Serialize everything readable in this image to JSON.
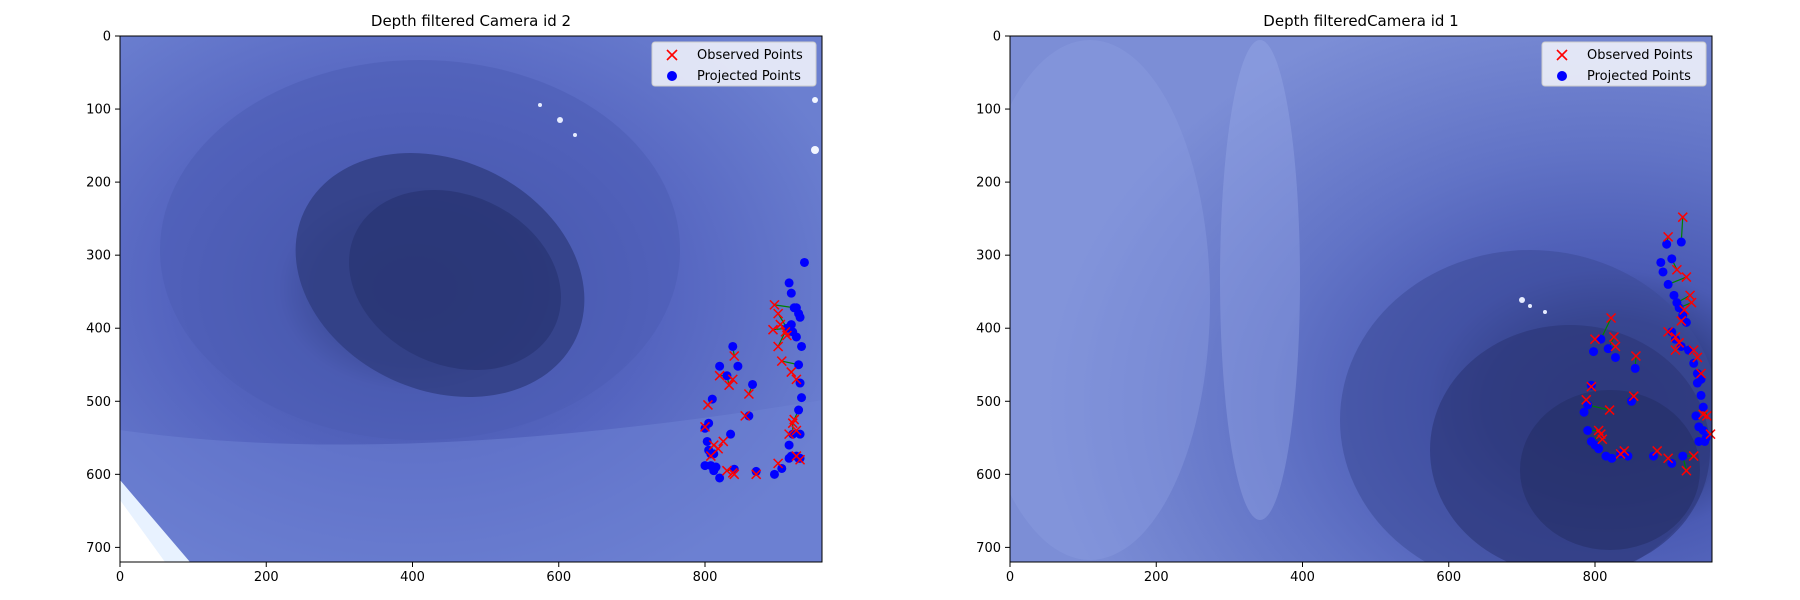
{
  "chart_data": [
    {
      "type": "scatter",
      "title": "Depth filtered Camera id 2",
      "background": "endoscopic colon image (blue-tinted), lumen center-left",
      "xlim": [
        0,
        960
      ],
      "ylim": [
        720,
        0
      ],
      "xticks": [
        0,
        200,
        400,
        600,
        800
      ],
      "yticks": [
        0,
        100,
        200,
        300,
        400,
        500,
        600,
        700
      ],
      "legend": {
        "position": "top-right",
        "entries": [
          "Observed Points",
          "Projected Points"
        ]
      },
      "colors": {
        "observed": "#ff0000",
        "projected": "#0000ff",
        "lines": "#008000"
      },
      "series": [
        {
          "name": "Observed Points",
          "marker": "x",
          "x": [
            895,
            900,
            903,
            910,
            893,
            905,
            912,
            900,
            918,
            925,
            922,
            840,
            838,
            833,
            820,
            825,
            855,
            860,
            800,
            804,
            808,
            812,
            818,
            830,
            840,
            838,
            870,
            900,
            915,
            920,
            925,
            930,
            925
          ],
          "y": [
            368,
            380,
            395,
            405,
            402,
            445,
            410,
            425,
            460,
            470,
            525,
            438,
            470,
            478,
            465,
            555,
            520,
            490,
            535,
            505,
            575,
            560,
            565,
            595,
            600,
            598,
            600,
            585,
            545,
            530,
            540,
            580,
            575
          ]
        },
        {
          "name": "Projected Points",
          "marker": "o",
          "x": [
            936,
            915,
            918,
            922,
            925,
            928,
            930,
            918,
            912,
            920,
            925,
            932,
            928,
            930,
            932,
            928,
            930,
            920,
            915,
            918,
            925,
            928,
            838,
            820,
            830,
            845,
            865,
            860,
            810,
            805,
            800,
            803,
            805,
            808,
            812,
            808,
            815,
            835,
            840,
            800,
            812,
            820,
            870,
            895,
            905,
            915,
            930
          ],
          "y": [
            310,
            338,
            352,
            372,
            372,
            380,
            385,
            395,
            400,
            405,
            412,
            425,
            450,
            475,
            495,
            512,
            545,
            545,
            560,
            575,
            575,
            578,
            425,
            452,
            465,
            452,
            477,
            520,
            497,
            530,
            537,
            555,
            567,
            572,
            572,
            588,
            590,
            545,
            593,
            588,
            595,
            605,
            596,
            600,
            592,
            578,
            578
          ]
        }
      ]
    },
    {
      "type": "scatter",
      "title": "Depth filteredCamera id 1",
      "background": "endoscopic colon image (blue-tinted), lumen lower-right",
      "xlim": [
        0,
        960
      ],
      "ylim": [
        720,
        0
      ],
      "xticks": [
        0,
        200,
        400,
        600,
        800
      ],
      "yticks": [
        0,
        100,
        200,
        300,
        400,
        500,
        600,
        700
      ],
      "legend": {
        "position": "top-right",
        "entries": [
          "Observed Points",
          "Projected Points"
        ]
      },
      "colors": {
        "observed": "#ff0000",
        "projected": "#0000ff",
        "lines": "#008000"
      },
      "series": [
        {
          "name": "Observed Points",
          "marker": "x",
          "x": [
            920,
            900,
            912,
            925,
            930,
            932,
            922,
            918,
            935,
            940,
            945,
            900,
            910,
            915,
            910,
            800,
            795,
            788,
            822,
            826,
            828,
            856,
            853,
            820,
            805,
            808,
            810,
            835,
            840,
            885,
            900,
            925,
            935,
            948,
            953,
            958
          ],
          "y": [
            248,
            275,
            320,
            330,
            355,
            365,
            375,
            390,
            430,
            440,
            462,
            405,
            412,
            420,
            430,
            415,
            480,
            498,
            386,
            412,
            425,
            438,
            493,
            512,
            540,
            545,
            552,
            572,
            568,
            568,
            578,
            595,
            575,
            518,
            520,
            545
          ]
        },
        {
          "name": "Projected Points",
          "marker": "o",
          "x": [
            918,
            898,
            905,
            890,
            893,
            900,
            908,
            912,
            915,
            920,
            925,
            905,
            910,
            918,
            928,
            935,
            940,
            945,
            940,
            945,
            948,
            938,
            942,
            948,
            952,
            855,
            850,
            828,
            818,
            808,
            798,
            795,
            790,
            785,
            790,
            795,
            800,
            805,
            815,
            823,
            835,
            845,
            880,
            905,
            920,
            942,
            950
          ],
          "y": [
            282,
            285,
            305,
            310,
            323,
            340,
            355,
            365,
            372,
            382,
            392,
            405,
            415,
            425,
            430,
            448,
            462,
            470,
            475,
            492,
            508,
            520,
            535,
            540,
            550,
            455,
            500,
            440,
            428,
            415,
            432,
            478,
            505,
            515,
            540,
            555,
            560,
            565,
            575,
            578,
            572,
            575,
            575,
            585,
            575,
            555,
            555
          ]
        }
      ]
    }
  ]
}
